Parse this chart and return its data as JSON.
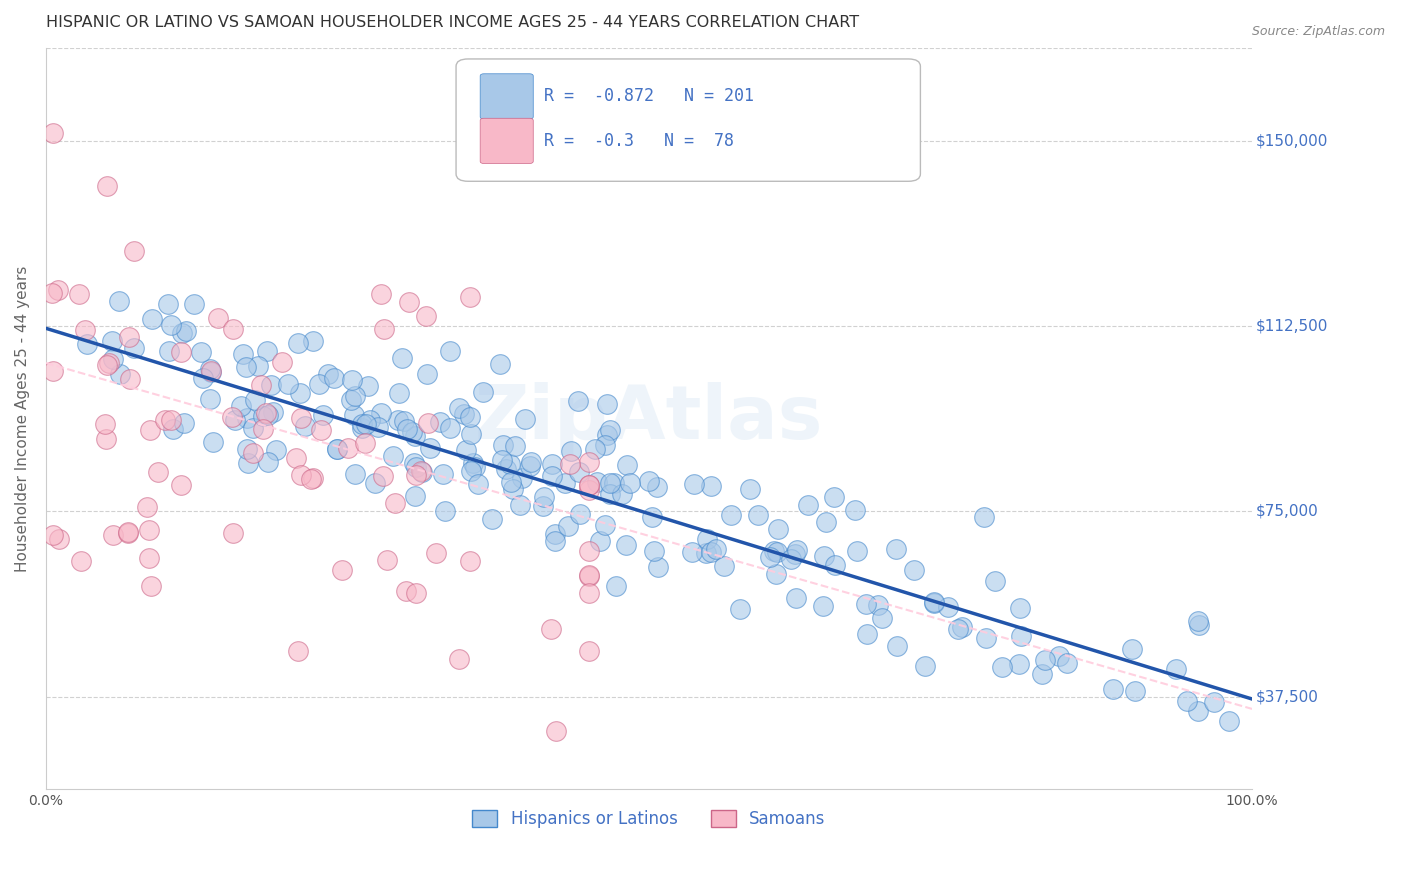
{
  "title": "HISPANIC OR LATINO VS SAMOAN HOUSEHOLDER INCOME AGES 25 - 44 YEARS CORRELATION CHART",
  "source": "Source: ZipAtlas.com",
  "ylabel": "Householder Income Ages 25 - 44 years",
  "xlim": [
    0,
    1.0
  ],
  "ylim": [
    18750,
    168750
  ],
  "yticks": [
    37500,
    75000,
    112500,
    150000
  ],
  "ytick_labels": [
    "$37,500",
    "$75,000",
    "$112,500",
    "$150,000"
  ],
  "xticks": [
    0.0,
    0.1,
    0.2,
    0.3,
    0.4,
    0.5,
    0.6,
    0.7,
    0.8,
    0.9,
    1.0
  ],
  "blue_color": "#a8c8e8",
  "blue_edge_color": "#4488cc",
  "pink_color": "#f8b8c8",
  "pink_edge_color": "#cc6688",
  "blue_line_color": "#2255aa",
  "pink_line_color": "#ffccdd",
  "R_blue": -0.872,
  "N_blue": 201,
  "R_pink": -0.3,
  "N_pink": 78,
  "legend_label_blue": "Hispanics or Latinos",
  "legend_label_pink": "Samoans",
  "watermark": "ZipAtlas",
  "grid_color": "#cccccc",
  "blue_scatter_seed": 42,
  "pink_scatter_seed": 7,
  "blue_n": 201,
  "pink_n": 78,
  "blue_intercept": 112000,
  "blue_slope": -75000,
  "pink_intercept": 105000,
  "pink_slope": -70000
}
